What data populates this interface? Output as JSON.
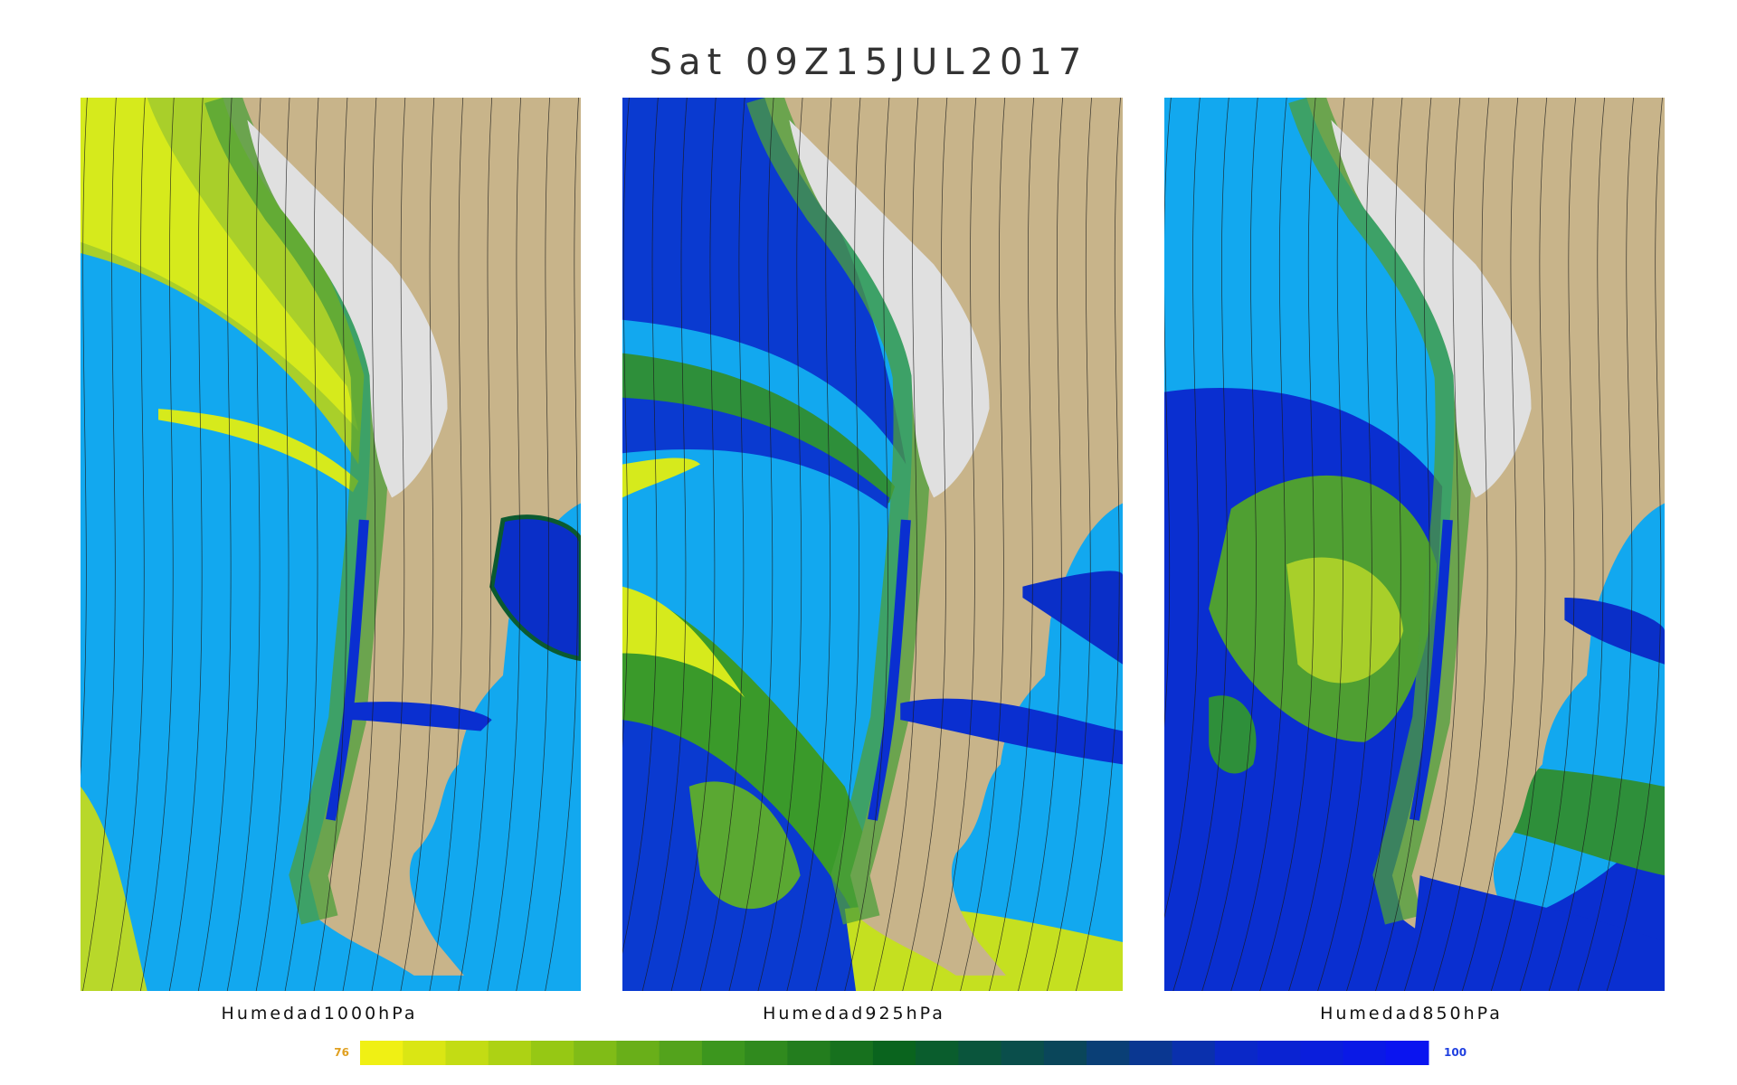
{
  "title": "Sat 09Z15JUL2017",
  "panels": [
    {
      "label": "Humedad1000hPa"
    },
    {
      "label": "Humedad925hPa"
    },
    {
      "label": "Humedad850hPa"
    }
  ],
  "colorbar": {
    "min": 76,
    "max": 100
  }
}
